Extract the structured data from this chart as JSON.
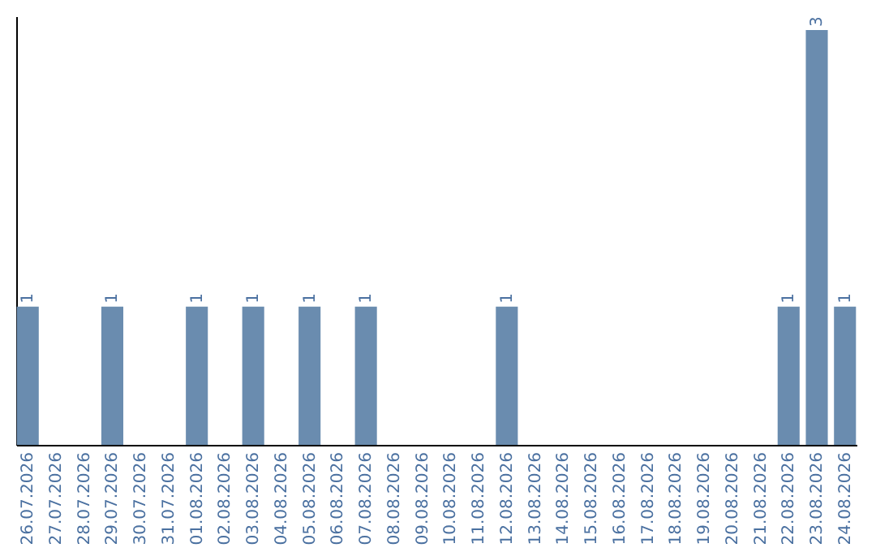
{
  "chart_data": {
    "type": "bar",
    "categories": [
      "26.07.2026",
      "27.07.2026",
      "28.07.2026",
      "29.07.2026",
      "30.07.2026",
      "31.07.2026",
      "01.08.2026",
      "02.08.2026",
      "03.08.2026",
      "04.08.2026",
      "05.08.2026",
      "06.08.2026",
      "07.08.2026",
      "08.08.2026",
      "09.08.2026",
      "10.08.2026",
      "11.08.2026",
      "12.08.2026",
      "13.08.2026",
      "14.08.2026",
      "15.08.2026",
      "16.08.2026",
      "17.08.2026",
      "18.08.2026",
      "19.08.2026",
      "20.08.2026",
      "21.08.2026",
      "22.08.2026",
      "23.08.2026",
      "24.08.2026"
    ],
    "values": [
      1,
      0,
      0,
      1,
      0,
      0,
      1,
      0,
      1,
      0,
      1,
      0,
      1,
      0,
      0,
      0,
      0,
      1,
      0,
      0,
      0,
      0,
      0,
      0,
      0,
      0,
      0,
      1,
      3,
      1
    ],
    "value_labels": [
      "1",
      null,
      null,
      "1",
      null,
      null,
      "1",
      null,
      "1",
      null,
      "1",
      null,
      "1",
      null,
      null,
      null,
      null,
      "1",
      null,
      null,
      null,
      null,
      null,
      null,
      null,
      null,
      null,
      "1",
      "3",
      "1"
    ],
    "color": "#6a8caf",
    "ylim": [
      0,
      3.1
    ],
    "tick_labels": "x",
    "grid": false
  }
}
